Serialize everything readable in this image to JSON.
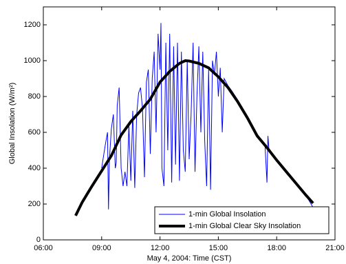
{
  "chart_data": {
    "type": "line",
    "x_label": "May 4, 2004: Time (CST)",
    "y_label": "Global Insolation (W/m²)",
    "xlim": [
      6,
      21
    ],
    "xticks": [
      {
        "value": 6,
        "label": "06:00"
      },
      {
        "value": 9,
        "label": "09:00"
      },
      {
        "value": 12,
        "label": "12:00"
      },
      {
        "value": 15,
        "label": "15:00"
      },
      {
        "value": 18,
        "label": "18:00"
      },
      {
        "value": 21,
        "label": "21:00"
      }
    ],
    "ylim": [
      0,
      1300
    ],
    "yticks": [
      0,
      200,
      400,
      600,
      800,
      1000,
      1200
    ],
    "legend": "lower right",
    "series": [
      {
        "name": "1-min Global Insolation",
        "color": "#0000ff",
        "width": 1,
        "x": [
          9.0,
          9.1,
          9.2,
          9.3,
          9.35,
          9.4,
          9.5,
          9.6,
          9.7,
          9.75,
          9.8,
          9.9,
          10.0,
          10.1,
          10.2,
          10.3,
          10.4,
          10.5,
          10.6,
          10.7,
          10.8,
          10.9,
          11.0,
          11.1,
          11.2,
          11.3,
          11.4,
          11.5,
          11.6,
          11.7,
          11.8,
          11.9,
          12.0,
          12.05,
          12.1,
          12.2,
          12.3,
          12.4,
          12.5,
          12.6,
          12.7,
          12.8,
          12.9,
          13.0,
          13.1,
          13.2,
          13.3,
          13.4,
          13.5,
          13.6,
          13.7,
          13.8,
          13.9,
          14.0,
          14.1,
          14.2,
          14.3,
          14.4,
          14.5,
          14.6,
          14.7,
          14.8,
          14.9,
          15.0,
          15.1,
          15.2,
          15.3,
          15.4,
          15.5,
          15.7,
          16.0,
          16.5,
          17.0,
          17.4,
          17.5,
          17.55,
          17.6,
          18.0,
          18.5,
          19.0,
          19.5,
          19.85
        ],
        "values": [
          400,
          470,
          540,
          600,
          170,
          450,
          620,
          700,
          400,
          430,
          750,
          850,
          400,
          300,
          380,
          300,
          640,
          330,
          720,
          290,
          700,
          820,
          850,
          730,
          350,
          880,
          950,
          480,
          900,
          1050,
          600,
          1150,
          950,
          1210,
          400,
          300,
          1100,
          500,
          1150,
          320,
          1080,
          420,
          1100,
          330,
          1050,
          500,
          380,
          1000,
          450,
          700,
          1100,
          380,
          800,
          1080,
          600,
          1050,
          550,
          300,
          950,
          280,
          1000,
          920,
          1050,
          800,
          960,
          600,
          900,
          880,
          860,
          830,
          780,
          690,
          590,
          530,
          320,
          580,
          510,
          445,
          380,
          310,
          250,
          185
        ]
      },
      {
        "name": "1-min Global Clear Sky Insolation",
        "color": "#000000",
        "width": 4,
        "x": [
          7.66,
          8,
          8.5,
          9,
          9.5,
          10,
          10.5,
          11,
          11.5,
          12,
          12.5,
          13,
          13.3,
          13.5,
          14,
          14.5,
          15,
          15.5,
          16,
          16.5,
          17,
          17.5,
          18,
          18.5,
          19,
          19.5,
          19.87
        ],
        "values": [
          135,
          210,
          300,
          385,
          470,
          585,
          660,
          720,
          785,
          880,
          940,
          985,
          1000,
          998,
          985,
          960,
          910,
          850,
          770,
          680,
          580,
          515,
          445,
          380,
          315,
          250,
          205
        ]
      }
    ]
  }
}
